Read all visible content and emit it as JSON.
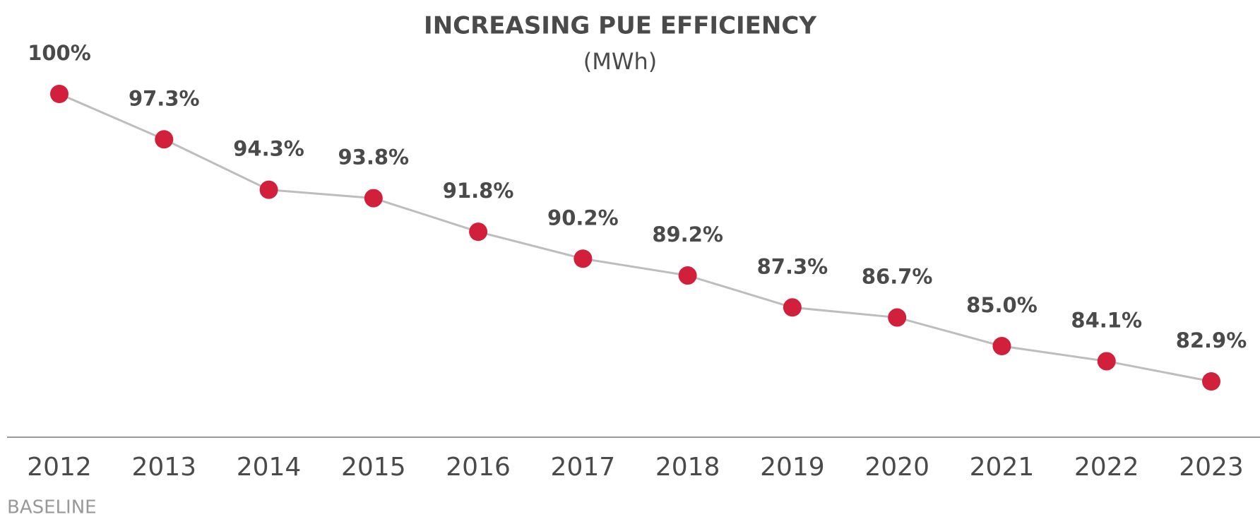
{
  "chart_data": {
    "type": "line",
    "title": "INCREASING PUE EFFICIENCY",
    "subtitle": "(MWh)",
    "annotation": "BASELINE",
    "categories": [
      "2012",
      "2013",
      "2014",
      "2015",
      "2016",
      "2017",
      "2018",
      "2019",
      "2020",
      "2021",
      "2022",
      "2023"
    ],
    "series": [
      {
        "color": "#d21f3c",
        "values": [
          100,
          97.3,
          94.3,
          93.8,
          91.8,
          90.2,
          89.2,
          87.3,
          86.7,
          85.0,
          84.1,
          82.9
        ],
        "value_labels": [
          "100%",
          "97.3%",
          "94.3%",
          "93.8%",
          "91.8%",
          "90.2%",
          "89.2%",
          "87.3%",
          "86.7%",
          "85.0%",
          "84.1%",
          "82.9%"
        ]
      }
    ]
  }
}
